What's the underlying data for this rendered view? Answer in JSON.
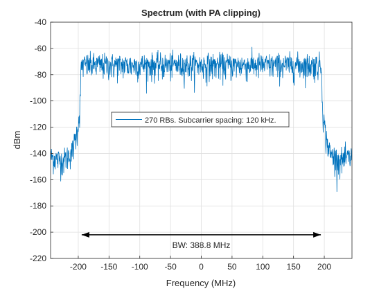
{
  "chart_data": {
    "type": "line",
    "title": "Spectrum (with PA clipping)",
    "xlabel": "Frequency (MHz)",
    "ylabel": "dBm",
    "xlim": [
      -245,
      245
    ],
    "ylim": [
      -220,
      -40
    ],
    "xticks": [
      -200,
      -150,
      -100,
      -50,
      0,
      50,
      100,
      150,
      200
    ],
    "yticks": [
      -40,
      -60,
      -80,
      -100,
      -120,
      -140,
      -160,
      -180,
      -200,
      -220
    ],
    "grid": true,
    "legend": {
      "placement": "center",
      "entries": [
        "270 RBs. Subcarrier spacing: 120 kHz."
      ]
    },
    "series": [
      {
        "name": "270 RBs. Subcarrier spacing: 120 kHz.",
        "color": "#0072BD",
        "profile": [
          {
            "x": -245,
            "y": -142
          },
          {
            "x": -225,
            "y": -145
          },
          {
            "x": -210,
            "y": -138
          },
          {
            "x": -203,
            "y": -125
          },
          {
            "x": -198,
            "y": -110
          },
          {
            "x": -195,
            "y": -72
          },
          {
            "x": 195,
            "y": -72
          },
          {
            "x": 198,
            "y": -110
          },
          {
            "x": 203,
            "y": -128
          },
          {
            "x": 210,
            "y": -140
          },
          {
            "x": 225,
            "y": -145
          },
          {
            "x": 245,
            "y": -142
          }
        ],
        "noise_std_db": 4
      }
    ],
    "annotations": [
      {
        "type": "double-arrow",
        "x_start": -194.4,
        "x_end": 194.4,
        "y": -202
      },
      {
        "type": "text",
        "text": "BW: 388.8 MHz",
        "x": 0,
        "y": -210
      }
    ]
  }
}
